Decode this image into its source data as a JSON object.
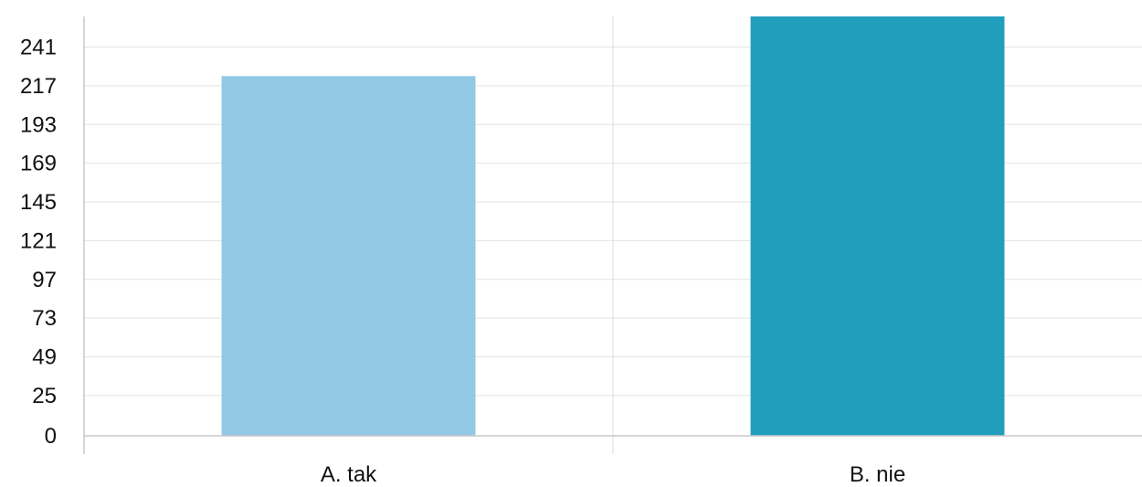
{
  "chart_data": {
    "type": "bar",
    "title": "",
    "xlabel": "",
    "ylabel": "",
    "categories": [
      "A. tak",
      "B. nie"
    ],
    "values": [
      223,
      260
    ],
    "colors": [
      "#92c9e5",
      "#229ebd"
    ],
    "ylim": [
      0,
      260
    ],
    "yticks": [
      0,
      25,
      49,
      73,
      97,
      121,
      145,
      169,
      193,
      217,
      241
    ],
    "grid": true,
    "legend": "none"
  }
}
